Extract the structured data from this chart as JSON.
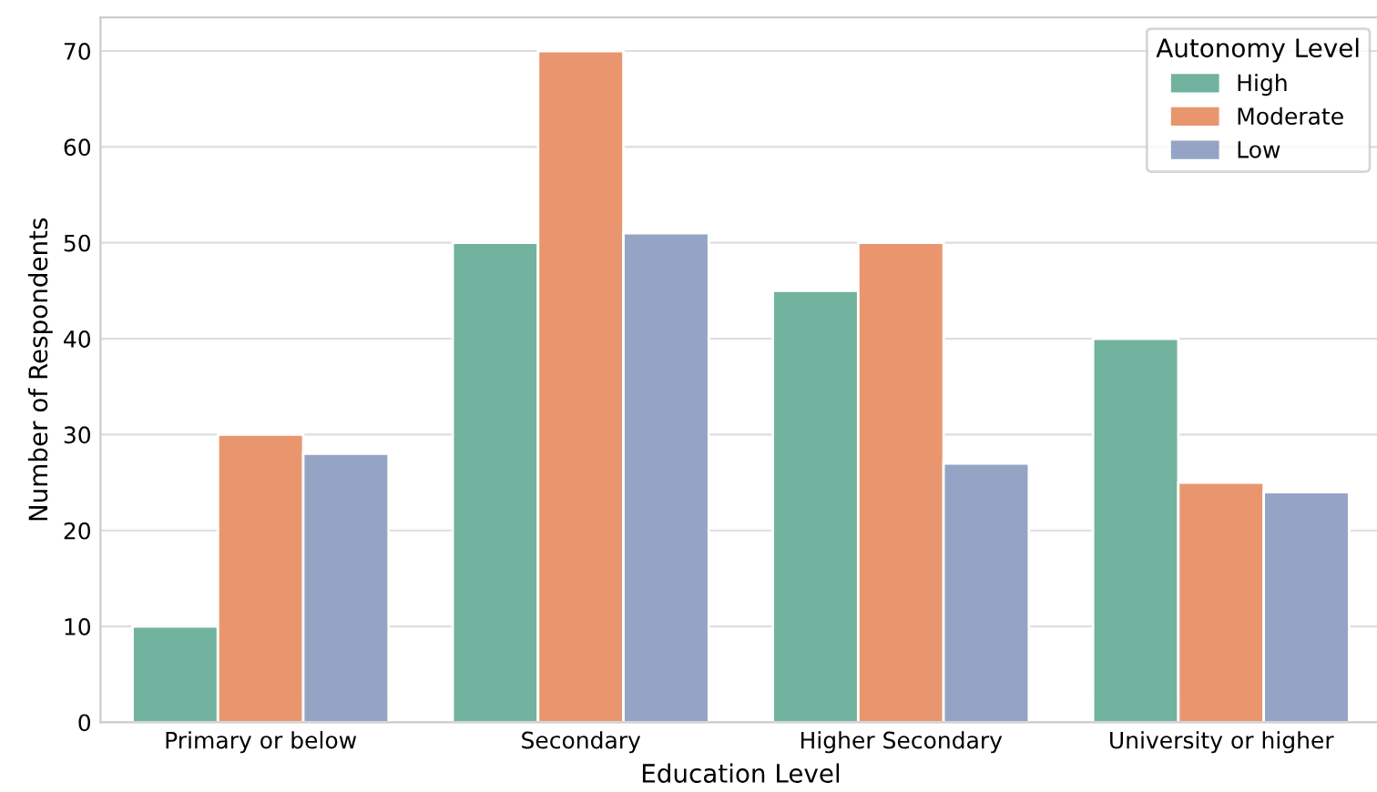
{
  "chart_data": {
    "type": "bar",
    "xlabel": "Education Level",
    "ylabel": "Number of Respondents",
    "legend_title": "Autonomy Level",
    "categories": [
      "Primary or below",
      "Secondary",
      "Higher Secondary",
      "University or higher"
    ],
    "series": [
      {
        "name": "High",
        "color": "#71b39f",
        "values": [
          10,
          50,
          45,
          40
        ]
      },
      {
        "name": "Moderate",
        "color": "#e9966f",
        "values": [
          30,
          70,
          50,
          25
        ]
      },
      {
        "name": "Low",
        "color": "#95a4c4",
        "values": [
          28,
          51,
          27,
          24
        ]
      }
    ],
    "ylim": [
      0,
      73.5
    ],
    "yticks": [
      0,
      10,
      20,
      30,
      40,
      50,
      60,
      70
    ],
    "grid": "y",
    "legend": "top right"
  }
}
